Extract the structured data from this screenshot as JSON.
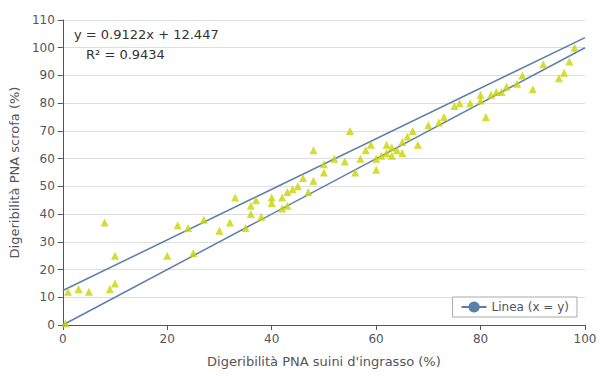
{
  "chart_data": {
    "type": "scatter",
    "xlabel": "Digeribilità PNA suini d'ingrasso (%)",
    "ylabel": "Digeribilità PNA scrofa (%)",
    "annotations": [
      "y = 0.9122x + 12.447",
      "R² = 0.9434"
    ],
    "xlim": [
      0,
      100
    ],
    "ylim": [
      0,
      110
    ],
    "xticks": [
      0,
      20,
      40,
      60,
      80,
      100
    ],
    "yticks": [
      0,
      10,
      20,
      30,
      40,
      50,
      60,
      70,
      80,
      90,
      100,
      110
    ],
    "grid": true,
    "legend": "lower right",
    "series": [
      {
        "type": "scatter",
        "color": "#c8d400",
        "marker": "triangle",
        "x": [
          0.5,
          1,
          3,
          5,
          8,
          9,
          10,
          10,
          20,
          22,
          24,
          25,
          27,
          30,
          32,
          33,
          35,
          36,
          36,
          37,
          38,
          40,
          40,
          42,
          42,
          43,
          43,
          44,
          45,
          46,
          47,
          48,
          48,
          50,
          50,
          52,
          54,
          55,
          56,
          57,
          58,
          59,
          60,
          60,
          61,
          62,
          62,
          63,
          63,
          64,
          65,
          65,
          66,
          67,
          68,
          70,
          72,
          73,
          75,
          76,
          78,
          80,
          80,
          81,
          82,
          83,
          84,
          85,
          87,
          88,
          90,
          92,
          95,
          96,
          97,
          98
        ],
        "values": [
          0.5,
          12,
          13,
          12,
          37,
          13,
          15,
          25,
          25,
          36,
          35,
          26,
          38,
          34,
          37,
          46,
          35,
          40,
          43,
          45,
          39,
          44,
          46,
          46,
          42,
          43,
          48,
          49,
          50,
          53,
          48,
          52,
          63,
          55,
          58,
          60,
          59,
          70,
          55,
          60,
          63,
          65,
          56,
          60,
          61,
          62,
          65,
          61,
          64,
          63,
          62,
          66,
          68,
          70,
          65,
          72,
          73,
          75,
          79,
          80,
          80,
          81,
          83,
          75,
          83,
          84,
          84,
          86,
          87,
          90,
          85,
          94,
          89,
          91,
          95,
          100
        ]
      },
      {
        "type": "line",
        "color": "#5a7fa8",
        "x": [
          0,
          100
        ],
        "values": [
          12.447,
          103.667
        ]
      },
      {
        "name": "Linea (x = y)",
        "type": "line",
        "color": "#5a7fa8",
        "x": [
          0,
          100
        ],
        "values": [
          0,
          100
        ]
      }
    ]
  }
}
